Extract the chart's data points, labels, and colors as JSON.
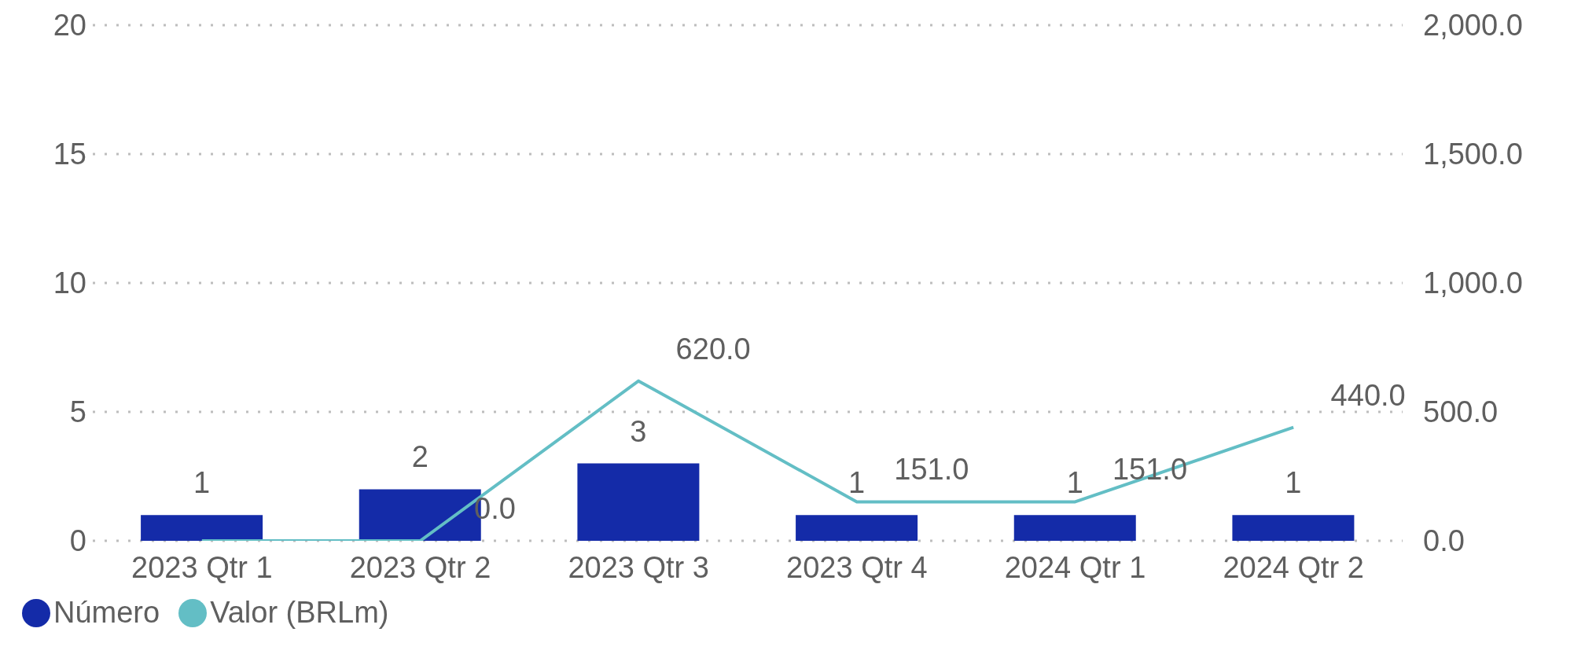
{
  "chart_data": {
    "type": "bar",
    "categories": [
      "2023 Qtr 1",
      "2023 Qtr 2",
      "2023 Qtr 3",
      "2023 Qtr 4",
      "2024 Qtr 1",
      "2024 Qtr 2"
    ],
    "series": [
      {
        "name": "Número",
        "color": "#142ba8",
        "values": [
          1,
          2,
          3,
          1,
          1,
          1
        ],
        "value_labels": [
          "1",
          "2",
          "3",
          "1",
          "1",
          "1"
        ]
      },
      {
        "name": "Valor (BRLm)",
        "type": "line",
        "axis": "y2",
        "color": "#63bec5",
        "values": [
          0,
          0,
          620,
          151,
          151,
          440
        ],
        "value_labels": [
          null,
          "0.0",
          "620.0",
          "151.0",
          "151.0",
          "440.0"
        ]
      }
    ],
    "ylim": [
      0,
      20
    ],
    "yticks": [
      0,
      5,
      10,
      15,
      20
    ],
    "y2lim": [
      0,
      2000
    ],
    "y2ticks": [
      {
        "value": 0,
        "label": "0.0"
      },
      {
        "value": 500,
        "label": "500.0"
      },
      {
        "value": 1000,
        "label": "1,000.0"
      },
      {
        "value": 1500,
        "label": "1,500.0"
      },
      {
        "value": 2000,
        "label": "2,000.0"
      }
    ],
    "grid": "y",
    "legend": "bottom left",
    "marker": "none",
    "line_style": "solid"
  }
}
